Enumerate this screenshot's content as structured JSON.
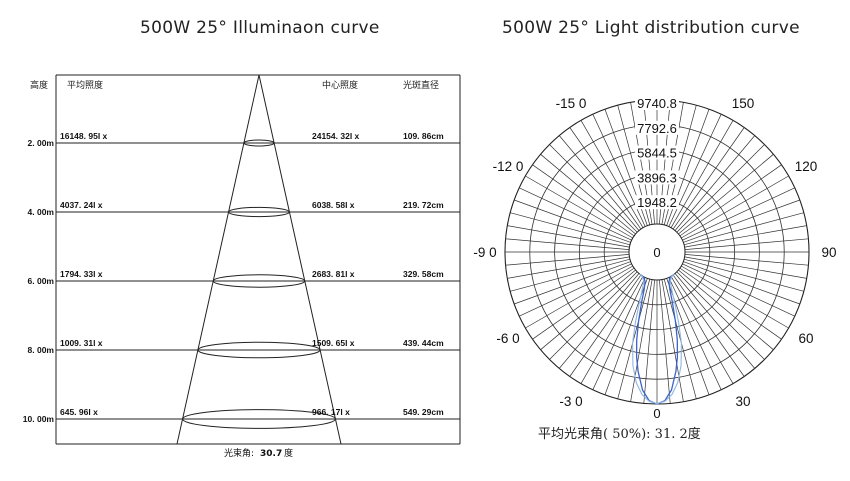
{
  "left_panel": {
    "title": "500W 25° Illuminaon curve",
    "headers": {
      "distance": "高度",
      "avg": "平均照度",
      "center": "中心照度",
      "diameter": "光斑直径"
    },
    "footer_label": "光束角:",
    "footer_value": "30.7",
    "footer_unit": "度"
  },
  "right_panel": {
    "title": "500W 25° Light distribution curve",
    "footer": "平均光束角( 50%): 31. 2度",
    "angle_labels": [
      "-15 0",
      "150",
      "-12 0",
      "120",
      "-9 0",
      "90",
      "-6 0",
      "60",
      "-3 0",
      "30",
      "0",
      "0"
    ],
    "ring_labels": [
      "9740.8",
      "7792.6",
      "5844.5",
      "3896.3",
      "1948.2"
    ]
  },
  "chart_data": [
    {
      "type": "table",
      "title": "500W 25° Illuminaon curve",
      "columns": [
        "高度",
        "平均照度",
        "中心照度",
        "光斑直径"
      ],
      "rows": [
        [
          "2.00m",
          "16148.95lx",
          "24154.32lx",
          "109.86cm"
        ],
        [
          "4.00m",
          "4037.24lx",
          "6038.58lx",
          "219.72cm"
        ],
        [
          "6.00m",
          "1794.33lx",
          "2683.81lx",
          "329.58cm"
        ],
        [
          "8.00m",
          "1009.31lx",
          "1509.65lx",
          "439.44cm"
        ],
        [
          "10.00m",
          "645.96lx",
          "966.17lx",
          "549.29cm"
        ]
      ],
      "distance_labels": [
        "2. 00m",
        "4. 00m",
        "6. 00m",
        "8. 00m",
        "10. 00m"
      ],
      "avg_labels": [
        "16148. 95l x",
        "4037. 24l x",
        "1794. 33l x",
        "1009. 31l x",
        "645. 96l x"
      ],
      "center_labels": [
        "24154. 32l x",
        "6038. 58l x",
        "2683. 81l x",
        "1509. 65l x",
        "966. 17l x"
      ],
      "diameter_labels": [
        "109. 86cm",
        "219. 72cm",
        "329. 58cm",
        "439. 44cm",
        "549. 29cm"
      ],
      "beam_angle_deg": 30.7
    },
    {
      "type": "line",
      "subtype": "polar",
      "title": "500W 25° Light distribution curve",
      "r_max": 9740.8,
      "r_ticks": [
        9740.8,
        7792.6,
        5844.5,
        3896.3,
        1948.2
      ],
      "angular_labels_deg": [
        -150,
        -120,
        -90,
        -60,
        -30,
        0,
        30,
        60,
        90,
        120,
        150
      ],
      "series": [
        {
          "color": "#3b64c8",
          "points": [
            [
              0,
              9740
            ],
            [
              3,
              9500
            ],
            [
              6,
              8700
            ],
            [
              9,
              7300
            ],
            [
              11,
              6200
            ],
            [
              13,
              4900
            ],
            [
              15,
              3400
            ],
            [
              17,
              1900
            ],
            [
              19,
              900
            ],
            [
              22,
              300
            ],
            [
              27,
              60
            ],
            [
              35,
              0
            ]
          ]
        },
        {
          "color": "#8fb6e6",
          "points": [
            [
              0,
              9700
            ],
            [
              3,
              9550
            ],
            [
              6,
              9050
            ],
            [
              9,
              8200
            ],
            [
              12,
              6900
            ],
            [
              15,
              5200
            ],
            [
              17,
              3600
            ],
            [
              19,
              2200
            ],
            [
              21,
              1100
            ],
            [
              24,
              350
            ],
            [
              30,
              60
            ],
            [
              38,
              0
            ]
          ]
        }
      ],
      "average_beam_angle_deg": 31.2,
      "average_beam_angle_threshold": "50%"
    }
  ]
}
